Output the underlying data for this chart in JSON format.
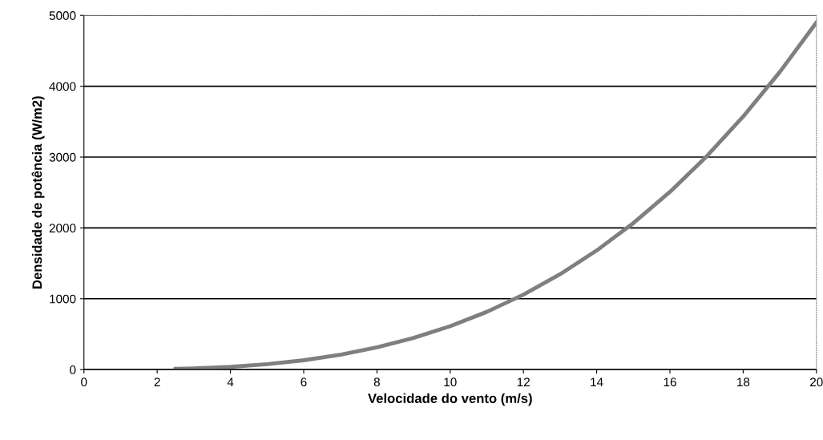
{
  "chart_data": {
    "type": "line",
    "xlabel": "Velocidade do vento (m/s)",
    "ylabel": "Densidade de potência (W/m2)",
    "x": [
      2.5,
      3,
      4,
      5,
      6,
      7,
      8,
      9,
      10,
      11,
      12,
      13,
      14,
      15,
      16,
      17,
      18,
      19,
      20
    ],
    "series": [
      {
        "color": "#7f7f7f",
        "values": [
          10,
          17,
          39,
          77,
          132,
          210,
          314,
          447,
          613,
          815,
          1058,
          1346,
          1681,
          2067,
          2509,
          3009,
          3572,
          4201,
          4900
        ]
      }
    ],
    "xlim": [
      0,
      20
    ],
    "ylim": [
      0,
      5000
    ],
    "xticks": [
      0,
      2,
      4,
      6,
      8,
      10,
      12,
      14,
      16,
      18,
      20
    ],
    "yticks": [
      0,
      1000,
      2000,
      3000,
      4000,
      5000
    ],
    "grid": "y",
    "legend": false,
    "marker": "none",
    "line_style": "solid"
  }
}
